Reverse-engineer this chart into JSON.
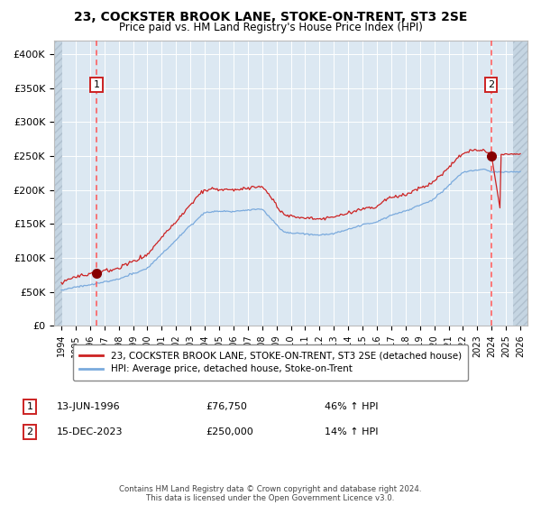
{
  "title": "23, COCKSTER BROOK LANE, STOKE-ON-TRENT, ST3 2SE",
  "subtitle": "Price paid vs. HM Land Registry's House Price Index (HPI)",
  "title_fontsize": 10,
  "subtitle_fontsize": 9,
  "legend_line1": "23, COCKSTER BROOK LANE, STOKE-ON-TRENT, ST3 2SE (detached house)",
  "legend_line2": "HPI: Average price, detached house, Stoke-on-Trent",
  "sale1_label": "1",
  "sale1_date": "13-JUN-1996",
  "sale1_price": 76750,
  "sale1_note": "46% ↑ HPI",
  "sale2_label": "2",
  "sale2_date": "15-DEC-2023",
  "sale2_price": 250000,
  "sale2_note": "14% ↑ HPI",
  "footer": "Contains HM Land Registry data © Crown copyright and database right 2024.\nThis data is licensed under the Open Government Licence v3.0.",
  "hpi_color": "#7aaadd",
  "property_color": "#cc2222",
  "marker_color": "#880000",
  "vline_color": "#ff5555",
  "plot_bg": "#dce8f2",
  "grid_color": "#ffffff",
  "box_color": "#cc2222",
  "ylim": [
    0,
    420000
  ],
  "sale1_year": 1996.45,
  "sale2_year": 2023.96
}
